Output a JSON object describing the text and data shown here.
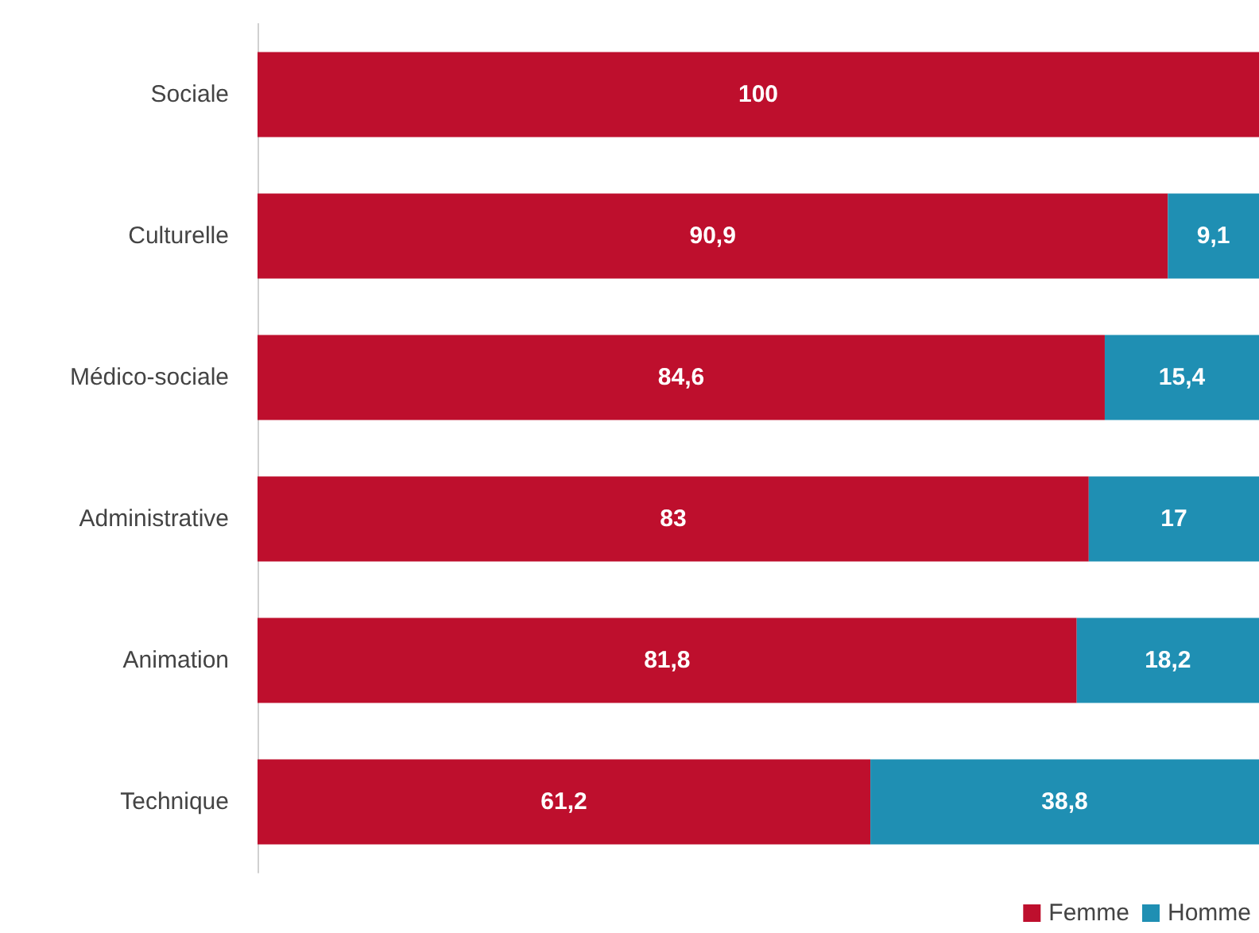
{
  "chart_data": {
    "type": "bar",
    "orientation": "horizontal",
    "stacked": true,
    "categories": [
      "Sociale",
      "Culturelle",
      "Médico-sociale",
      "Administrative",
      "Animation",
      "Technique"
    ],
    "series": [
      {
        "name": "Femme",
        "color": "#be0f2d",
        "values": [
          100,
          90.9,
          84.6,
          83,
          81.8,
          61.2
        ],
        "value_labels": [
          "100",
          "90,9",
          "84,6",
          "83",
          "81,8",
          "61,2"
        ]
      },
      {
        "name": "Homme",
        "color": "#1f8fb3",
        "values": [
          null,
          9.1,
          15.4,
          17,
          18.2,
          38.8
        ],
        "value_labels": [
          null,
          "9,1",
          "15,4",
          "17",
          "18,2",
          "38,8"
        ]
      }
    ],
    "xlim": [
      0,
      100
    ],
    "tick_labels": "y",
    "legend": "bottom right",
    "grid": false
  }
}
